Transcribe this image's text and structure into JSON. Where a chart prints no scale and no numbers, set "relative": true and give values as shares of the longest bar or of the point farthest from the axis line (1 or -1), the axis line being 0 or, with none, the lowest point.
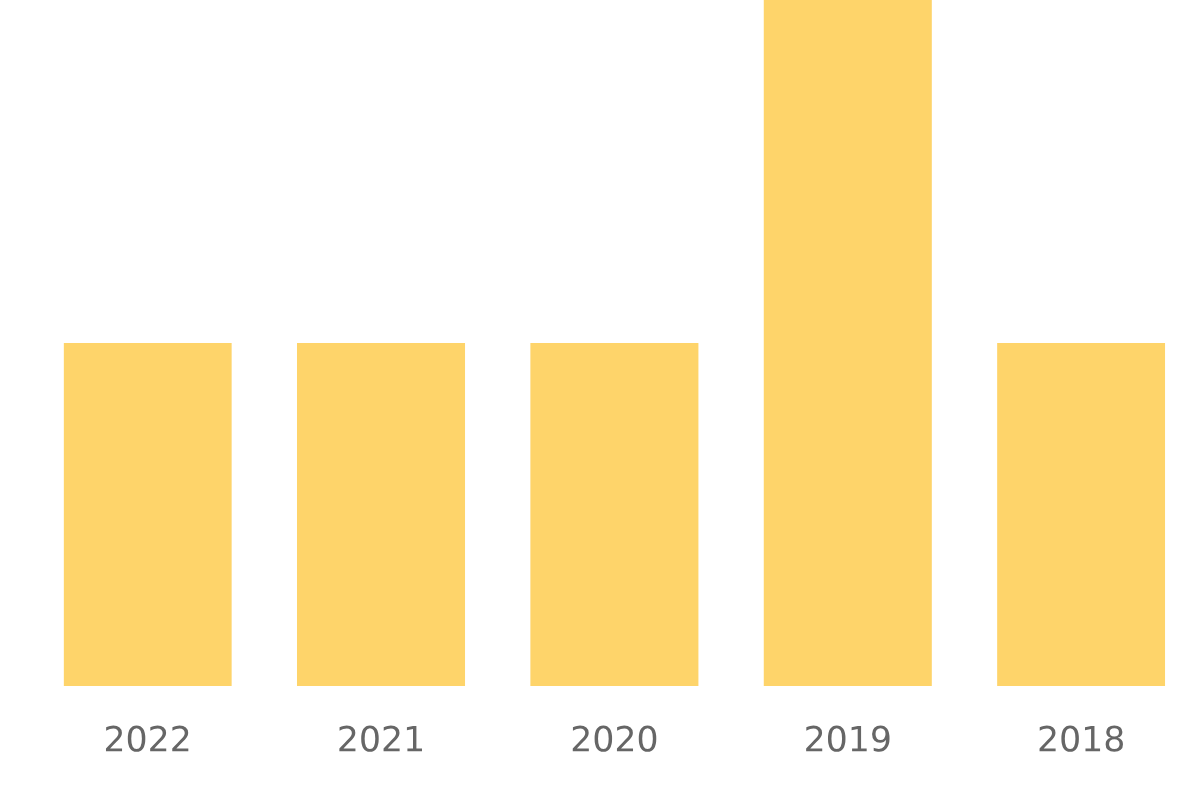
{
  "chart_data": {
    "type": "bar",
    "relative": true,
    "categories": [
      "2022",
      "2021",
      "2020",
      "2019",
      "2018"
    ],
    "values": [
      0.5,
      0.5,
      0.5,
      1,
      0.5
    ],
    "color": "#fed46a",
    "grid": false,
    "legend": false
  }
}
